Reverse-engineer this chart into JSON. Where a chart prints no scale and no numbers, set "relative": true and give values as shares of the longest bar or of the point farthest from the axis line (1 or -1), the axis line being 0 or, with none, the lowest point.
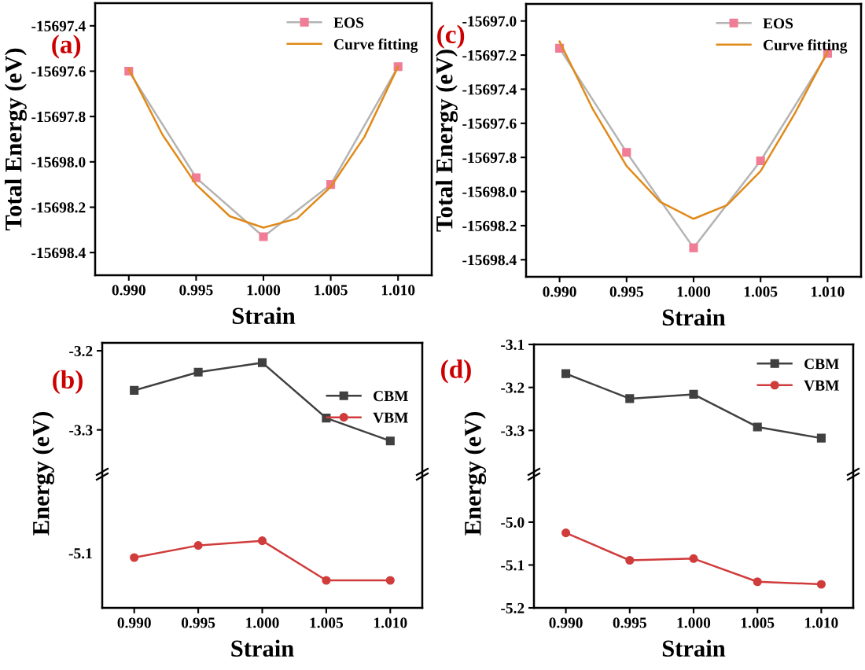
{
  "chart_data": [
    {
      "type": "line",
      "title": "(a)",
      "xlabel": "Strain",
      "ylabel": "Total Energy (eV)",
      "xlim": [
        0.9875,
        1.0125
      ],
      "xticks": [
        {
          "value": 0.99,
          "label": "0.990"
        },
        {
          "value": 0.995,
          "label": "0.995"
        },
        {
          "value": 1.0,
          "label": "1.000"
        },
        {
          "value": 1.005,
          "label": "1.005"
        },
        {
          "value": 1.01,
          "label": "1.010"
        }
      ],
      "ylim": [
        -15698.5,
        -15697.3
      ],
      "yticks": [
        {
          "value": -15697.4,
          "label": "-15697.4"
        },
        {
          "value": -15697.6,
          "label": "-15697.6"
        },
        {
          "value": -15697.8,
          "label": "-15697.8"
        },
        {
          "value": -15698.0,
          "label": "-15698.0"
        },
        {
          "value": -15698.2,
          "label": "-15698.2"
        },
        {
          "value": -15698.4,
          "label": "-15698.4"
        }
      ],
      "legend": "top right",
      "grid": false,
      "series": [
        {
          "name": "EOS",
          "color": "#b4b4b4",
          "colors": [
            "#f07c96",
            "#f07c96",
            "#f07c96",
            "#f07c96",
            "#f07c96"
          ],
          "marker": "square",
          "x": [
            0.99,
            0.995,
            1.0,
            1.005,
            1.01
          ],
          "values": [
            -15697.6,
            -15698.07,
            -15698.33,
            -15698.1,
            -15697.58
          ]
        },
        {
          "name": "Curve fitting",
          "color": "#e08a1a",
          "marker": "none",
          "x": [
            0.99,
            0.9925,
            0.995,
            0.9975,
            1.0,
            1.0025,
            1.005,
            1.0075,
            1.01
          ],
          "values": [
            -15697.59,
            -15697.88,
            -15698.1,
            -15698.24,
            -15698.29,
            -15698.25,
            -15698.11,
            -15697.89,
            -15697.58
          ]
        }
      ]
    },
    {
      "type": "line",
      "title": "(b)",
      "ylabel": "Energy (eV)",
      "tick_labels": "y",
      "xlim": [
        0.9875,
        1.0125
      ],
      "ylim": [
        -3.355,
        -3.19
      ],
      "yticks": [
        -3.2,
        -3.3
      ],
      "legend": "right",
      "grid": false,
      "series": [
        {
          "name": "CBM",
          "color": "#404040",
          "marker": "square",
          "x": [
            0.99,
            0.995,
            1.0,
            1.005,
            1.01
          ],
          "values": [
            -3.25,
            -3.227,
            -3.215,
            -3.285,
            -3.314
          ]
        }
      ]
    },
    {
      "type": "line",
      "relative": true,
      "xlabel": "Strain",
      "xlim": [
        0.9875,
        1.0125
      ],
      "xticks": [
        {
          "value": 0.99,
          "label": "0.990"
        },
        {
          "value": 0.995,
          "label": "0.995"
        },
        {
          "value": 1.0,
          "label": "1.000"
        },
        {
          "value": 1.005,
          "label": "1.005"
        },
        {
          "value": 1.01,
          "label": "1.010"
        }
      ],
      "annotations": [
        "-5.1"
      ],
      "grid": false,
      "series": [
        {
          "name": "VBM",
          "color": "#d03c3c",
          "marker": "circle",
          "x": [
            0.99,
            0.995,
            1.0,
            1.005,
            1.01
          ],
          "values": [
            0.75,
            0.93,
            1.0,
            0.41,
            0.41
          ]
        }
      ]
    },
    {
      "type": "line",
      "title": "(c)",
      "xlabel": "Strain",
      "ylabel": "Total Energy (eV)",
      "xlim": [
        0.9875,
        1.0125
      ],
      "xticks": [
        {
          "value": 0.99,
          "label": "0.990"
        },
        {
          "value": 0.995,
          "label": "0.995"
        },
        {
          "value": 1.0,
          "label": "1.000"
        },
        {
          "value": 1.005,
          "label": "1.005"
        },
        {
          "value": 1.01,
          "label": "1.010"
        }
      ],
      "ylim": [
        -15698.5,
        -15696.9
      ],
      "yticks": [
        {
          "value": -15697.0,
          "label": "-15697.0"
        },
        {
          "value": -15697.2,
          "label": "-15697.2"
        },
        {
          "value": -15697.4,
          "label": "-15697.4"
        },
        {
          "value": -15697.6,
          "label": "-15697.6"
        },
        {
          "value": -15697.8,
          "label": "-15697.8"
        },
        {
          "value": -15698.0,
          "label": "-15698.0"
        },
        {
          "value": -15698.2,
          "label": "-15698.2"
        },
        {
          "value": -15698.4,
          "label": "-15698.4"
        }
      ],
      "legend": "top right",
      "grid": false,
      "series": [
        {
          "name": "EOS",
          "color": "#b4b4b4",
          "colors": [
            "#f07c96",
            "#f07c96",
            "#f07c96",
            "#f07c96",
            "#f07c96"
          ],
          "marker": "square",
          "x": [
            0.99,
            0.995,
            1.0,
            1.005,
            1.01
          ],
          "values": [
            -15697.16,
            -15697.77,
            -15698.33,
            -15697.82,
            -15697.19
          ]
        },
        {
          "name": "Curve fitting",
          "color": "#e08a1a",
          "marker": "none",
          "x": [
            0.99,
            0.9925,
            0.995,
            0.9975,
            1.0,
            1.0025,
            1.005,
            1.0075,
            1.01
          ],
          "values": [
            -15697.12,
            -15697.52,
            -15697.85,
            -15698.06,
            -15698.16,
            -15698.08,
            -15697.88,
            -15697.55,
            -15697.18
          ]
        }
      ]
    },
    {
      "type": "line",
      "title": "(d)",
      "ylabel": "Energy (eV)",
      "tick_labels": "y",
      "xlim": [
        0.9875,
        1.0125
      ],
      "ylim": [
        -3.4,
        -3.1
      ],
      "yticks": [
        -3.1,
        -3.2,
        -3.3
      ],
      "legend": "top right",
      "grid": false,
      "series": [
        {
          "name": "CBM",
          "color": "#404040",
          "marker": "square",
          "x": [
            0.99,
            0.995,
            1.0,
            1.005,
            1.01
          ],
          "values": [
            -3.168,
            -3.226,
            -3.216,
            -3.292,
            -3.318
          ]
        }
      ]
    },
    {
      "type": "line",
      "xlabel": "Strain",
      "xlim": [
        0.9875,
        1.0125
      ],
      "xticks": [
        {
          "value": 0.99,
          "label": "0.990"
        },
        {
          "value": 0.995,
          "label": "0.995"
        },
        {
          "value": 1.0,
          "label": "1.000"
        },
        {
          "value": 1.005,
          "label": "1.005"
        },
        {
          "value": 1.01,
          "label": "1.010"
        }
      ],
      "ylim": [
        -5.2,
        -4.89
      ],
      "yticks": [
        {
          "value": -5.0,
          "label": "-5.0"
        },
        -5.1,
        {
          "value": -5.2,
          "label": "-5.2"
        }
      ],
      "grid": false,
      "series": [
        {
          "name": "VBM",
          "color": "#d03c3c",
          "marker": "circle",
          "x": [
            0.99,
            0.995,
            1.0,
            1.005,
            1.01
          ],
          "values": [
            -5.025,
            -5.089,
            -5.085,
            -5.139,
            -5.145
          ]
        }
      ]
    }
  ]
}
